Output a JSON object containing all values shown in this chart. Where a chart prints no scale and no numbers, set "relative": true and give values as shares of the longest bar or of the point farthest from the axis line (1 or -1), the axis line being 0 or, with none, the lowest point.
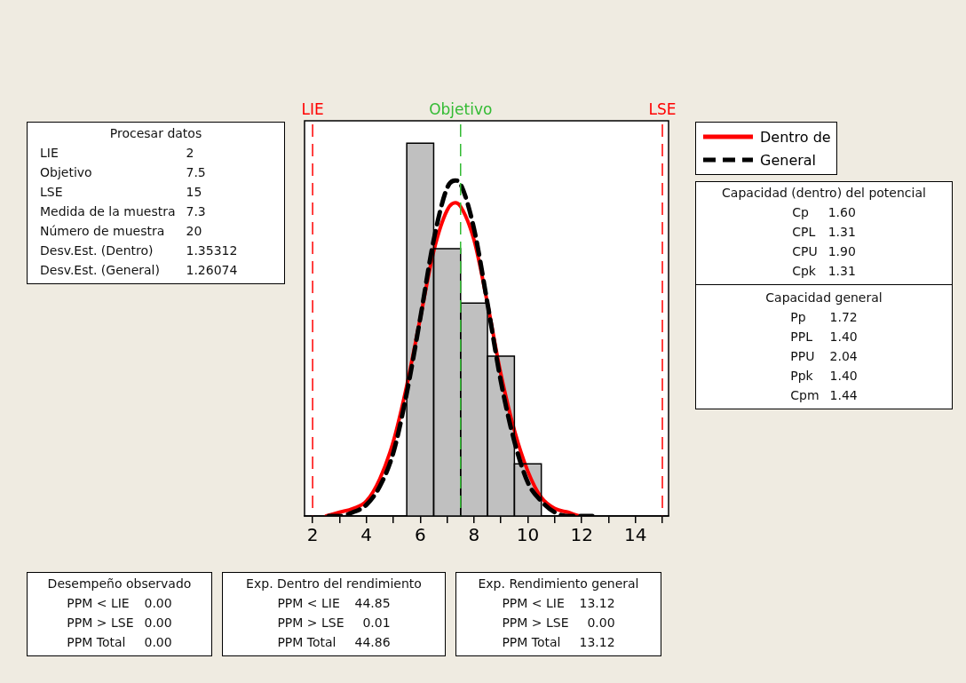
{
  "chart_data": {
    "type": "histogram",
    "relative": true,
    "bins": [
      5.5,
      6.5,
      7.5,
      8.5,
      9.5,
      10.5
    ],
    "values": [
      1,
      0.717,
      0.571,
      0.429,
      0.14
    ],
    "color": "#c0c0c0",
    "xlim": [
      1.7,
      15.23
    ],
    "xticks": [
      2,
      {
        "value": 3,
        "label": null
      },
      4,
      {
        "value": 5,
        "label": null
      },
      6,
      {
        "value": 7,
        "label": null
      },
      8,
      {
        "value": 9,
        "label": null
      },
      10,
      {
        "value": 11,
        "label": null
      },
      12,
      {
        "value": 13,
        "label": null
      },
      14,
      {
        "value": 15,
        "label": null
      }
    ],
    "series": [
      {
        "type": "line",
        "name": "Dentro de",
        "color": "#ff0000",
        "line_style": "solid",
        "x": [
          2.5,
          3,
          3.5,
          4,
          4.5,
          5,
          5.5,
          6,
          6.5,
          7,
          7.3,
          7.5,
          8,
          8.5,
          9,
          9.5,
          10,
          10.5,
          11,
          11.5,
          12,
          12.4
        ],
        "values": [
          0,
          0.01,
          0.02,
          0.04,
          0.1,
          0.2,
          0.35,
          0.53,
          0.71,
          0.82,
          0.84,
          0.83,
          0.74,
          0.57,
          0.38,
          0.23,
          0.12,
          0.05,
          0.02,
          0.01,
          0,
          0
        ]
      },
      {
        "type": "line",
        "name": "General",
        "color": "#000000",
        "line_style": "dashed",
        "x": [
          2.6,
          3,
          3.5,
          4,
          4.5,
          5,
          5.5,
          6,
          6.5,
          7,
          7.3,
          7.5,
          8,
          8.5,
          9,
          9.5,
          10,
          10.5,
          11,
          11.5,
          12,
          12.4
        ],
        "values": [
          0,
          0,
          0.01,
          0.03,
          0.08,
          0.17,
          0.33,
          0.53,
          0.74,
          0.88,
          0.9,
          0.89,
          0.77,
          0.57,
          0.36,
          0.2,
          0.09,
          0.04,
          0.01,
          0,
          0,
          0
        ]
      }
    ],
    "ref_lines": [
      {
        "axis": "x",
        "value": 2,
        "label": "LIE",
        "color": "#ff0000",
        "line_style": "dashed"
      },
      {
        "axis": "x",
        "value": 7.5,
        "label": "Objetivo",
        "color": "#33bb33",
        "line_style": "dashed"
      },
      {
        "axis": "x",
        "value": 15,
        "label": "LSE",
        "color": "#ff0000",
        "line_style": "dashed"
      }
    ],
    "legend": "top right",
    "grid": false,
    "annotations": [
      "Procesar datos\nLIE\t2\nObjetivo\t7.5\nLSE\t15\nMedida de la muestra\t7.3\nNúmero de muestra\t20\nDesv.Est. (Dentro)\t1.35312\nDesv.Est. (General)\t1.26074",
      "Capacidad (dentro) del potencial\nCp\t1.60\nCPL\t1.31\nCPU\t1.90\nCpk\t1.31",
      "Capacidad general\nPp\t1.72\nPPL\t1.40\nPPU\t2.04\nPpk\t1.40\nCpm\t1.44",
      "Desempeño observado\nPPM < LIE\t0.00\nPPM > LSE\t0.00\nPPM Total\t0.00",
      "Exp. Dentro del rendimiento\nPPM < LIE\t44.85\nPPM > LSE\t0.01\nPPM Total\t44.86",
      "Exp. Rendimiento general\nPPM < LIE\t13.12\nPPM > LSE\t0.00\nPPM Total\t13.12"
    ]
  }
}
